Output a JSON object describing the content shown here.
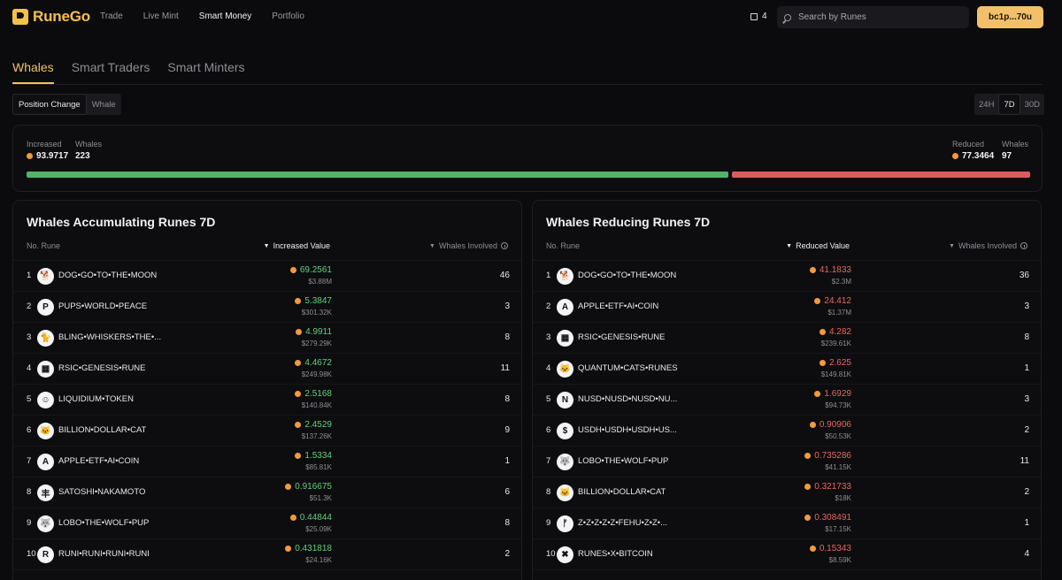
{
  "app": {
    "name": "RuneGo"
  },
  "nav": [
    "Trade",
    "Live Mint",
    "Smart Money",
    "Portfolio"
  ],
  "notifications": "4",
  "search": {
    "placeholder": "Search by Runes"
  },
  "wallet": "bc1p...70u",
  "tabs": [
    "Whales",
    "Smart Traders",
    "Smart Minters"
  ],
  "view_toggle": [
    "Position Change",
    "Whale"
  ],
  "periods": [
    "24H",
    "7D",
    "30D"
  ],
  "summary": {
    "increased_label": "Increased",
    "increased_value": "93.9717",
    "increased_whales_label": "Whales",
    "increased_whales": "223",
    "reduced_label": "Reduced",
    "reduced_value": "77.3464",
    "reduced_whales_label": "Whales",
    "reduced_whales": "97",
    "colors": {
      "increase": "#52b46c",
      "reduce": "#dc5c5c"
    }
  },
  "accumulating": {
    "title": "Whales Accumulating Runes 7D",
    "col_rune": "No. Rune",
    "col_value": "Increased Value",
    "col_whales": "Whales Involved",
    "rows": [
      {
        "no": "1",
        "icon": "🐕",
        "name": "DOG•GO•TO•THE•MOON",
        "value": "69.2561",
        "usd": "$3.88M",
        "whales": "46"
      },
      {
        "no": "2",
        "icon": "P",
        "name": "PUPS•WORLD•PEACE",
        "value": "5.3847",
        "usd": "$301.32K",
        "whales": "3"
      },
      {
        "no": "3",
        "icon": "🐈",
        "name": "BLING•WHISKERS•THE•...",
        "value": "4.9911",
        "usd": "$279.29K",
        "whales": "8"
      },
      {
        "no": "4",
        "icon": "▦",
        "name": "RSIC•GENESIS•RUNE",
        "value": "4.4672",
        "usd": "$249.98K",
        "whales": "11"
      },
      {
        "no": "5",
        "icon": "☺",
        "name": "LIQUIDIUM•TOKEN",
        "value": "2.5168",
        "usd": "$140.84K",
        "whales": "8"
      },
      {
        "no": "6",
        "icon": "🐱",
        "name": "BILLION•DOLLAR•CAT",
        "value": "2.4529",
        "usd": "$137.26K",
        "whales": "9"
      },
      {
        "no": "7",
        "icon": "A",
        "name": "APPLE•ETF•AI•COIN",
        "value": "1.5334",
        "usd": "$85.81K",
        "whales": "1"
      },
      {
        "no": "8",
        "icon": "丰",
        "name": "SATOSHI•NAKAMOTO",
        "value": "0.916675",
        "usd": "$51.3K",
        "whales": "6"
      },
      {
        "no": "9",
        "icon": "🐺",
        "name": "LOBO•THE•WOLF•PUP",
        "value": "0.44844",
        "usd": "$25.09K",
        "whales": "8"
      },
      {
        "no": "10",
        "icon": "R",
        "name": "RUNI•RUNI•RUNI•RUNI",
        "value": "0.431818",
        "usd": "$24.16K",
        "whales": "2"
      }
    ]
  },
  "reducing": {
    "title": "Whales Reducing Runes 7D",
    "col_rune": "No. Rune",
    "col_value": "Reduced Value",
    "col_whales": "Whales Involved",
    "rows": [
      {
        "no": "1",
        "icon": "🐕",
        "name": "DOG•GO•TO•THE•MOON",
        "value": "41.1833",
        "usd": "$2.3M",
        "whales": "36"
      },
      {
        "no": "2",
        "icon": "A",
        "name": "APPLE•ETF•AI•COIN",
        "value": "24.412",
        "usd": "$1.37M",
        "whales": "3"
      },
      {
        "no": "3",
        "icon": "▦",
        "name": "RSIC•GENESIS•RUNE",
        "value": "4.282",
        "usd": "$239.61K",
        "whales": "8"
      },
      {
        "no": "4",
        "icon": "🐱",
        "name": "QUANTUM•CATS•RUNES",
        "value": "2.625",
        "usd": "$149.81K",
        "whales": "1"
      },
      {
        "no": "5",
        "icon": "N",
        "name": "NUSD•NUSD•NUSD•NU...",
        "value": "1.6929",
        "usd": "$94.73K",
        "whales": "3"
      },
      {
        "no": "6",
        "icon": "$",
        "name": "USDH•USDH•USDH•US...",
        "value": "0.90906",
        "usd": "$50.53K",
        "whales": "2"
      },
      {
        "no": "7",
        "icon": "🐺",
        "name": "LOBO•THE•WOLF•PUP",
        "value": "0.735286",
        "usd": "$41.15K",
        "whales": "11"
      },
      {
        "no": "8",
        "icon": "🐱",
        "name": "BILLION•DOLLAR•CAT",
        "value": "0.321733",
        "usd": "$18K",
        "whales": "2"
      },
      {
        "no": "9",
        "icon": "ᚠ",
        "name": "Z•Z•Z•Z•Z•FEHU•Z•Z•...",
        "value": "0.308491",
        "usd": "$17.15K",
        "whales": "1"
      },
      {
        "no": "10",
        "icon": "✖",
        "name": "RUNES•X•BITCOIN",
        "value": "0.15343",
        "usd": "$8.59K",
        "whales": "4"
      }
    ]
  }
}
